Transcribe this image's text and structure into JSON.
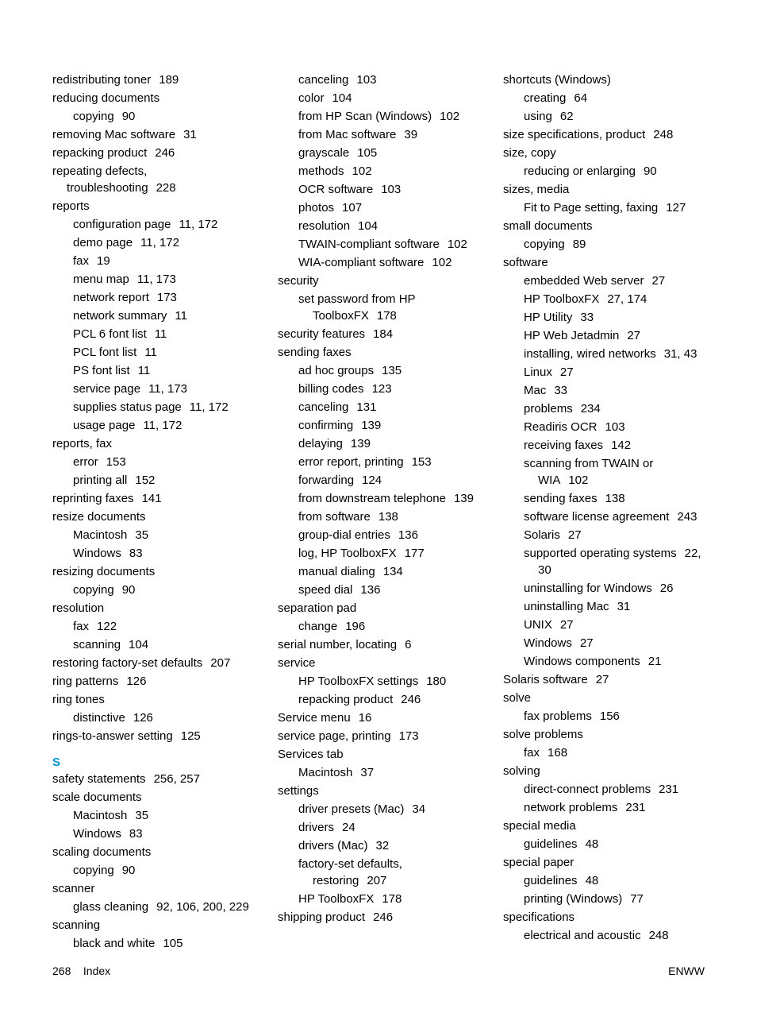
{
  "columns": [
    {
      "items": [
        {
          "type": "entry",
          "level": 0,
          "text": "redistributing toner",
          "pages": "189"
        },
        {
          "type": "entry",
          "level": 0,
          "text": "reducing documents",
          "pages": ""
        },
        {
          "type": "entry",
          "level": 1,
          "text": "copying",
          "pages": "90"
        },
        {
          "type": "entry",
          "level": 0,
          "text": "removing Mac software",
          "pages": "31"
        },
        {
          "type": "entry",
          "level": 0,
          "text": "repacking product",
          "pages": "246"
        },
        {
          "type": "entry",
          "level": 0,
          "text": "repeating defects, troubleshooting",
          "pages": "228"
        },
        {
          "type": "entry",
          "level": 0,
          "text": "reports",
          "pages": ""
        },
        {
          "type": "entry",
          "level": 1,
          "text": "configuration page",
          "pages": "11, 172"
        },
        {
          "type": "entry",
          "level": 1,
          "text": "demo page",
          "pages": "11, 172"
        },
        {
          "type": "entry",
          "level": 1,
          "text": "fax",
          "pages": "19"
        },
        {
          "type": "entry",
          "level": 1,
          "text": "menu map",
          "pages": "11, 173"
        },
        {
          "type": "entry",
          "level": 1,
          "text": "network report",
          "pages": "173"
        },
        {
          "type": "entry",
          "level": 1,
          "text": "network summary",
          "pages": "11"
        },
        {
          "type": "entry",
          "level": 1,
          "text": "PCL 6 font list",
          "pages": "11"
        },
        {
          "type": "entry",
          "level": 1,
          "text": "PCL font list",
          "pages": "11"
        },
        {
          "type": "entry",
          "level": 1,
          "text": "PS font list",
          "pages": "11"
        },
        {
          "type": "entry",
          "level": 1,
          "text": "service page",
          "pages": "11, 173"
        },
        {
          "type": "entry",
          "level": 1,
          "text": "supplies status page",
          "pages": "11, 172"
        },
        {
          "type": "entry",
          "level": 1,
          "text": "usage page",
          "pages": "11, 172"
        },
        {
          "type": "entry",
          "level": 0,
          "text": "reports, fax",
          "pages": ""
        },
        {
          "type": "entry",
          "level": 1,
          "text": "error",
          "pages": "153"
        },
        {
          "type": "entry",
          "level": 1,
          "text": "printing all",
          "pages": "152"
        },
        {
          "type": "entry",
          "level": 0,
          "text": "reprinting faxes",
          "pages": "141"
        },
        {
          "type": "entry",
          "level": 0,
          "text": "resize documents",
          "pages": ""
        },
        {
          "type": "entry",
          "level": 1,
          "text": "Macintosh",
          "pages": "35"
        },
        {
          "type": "entry",
          "level": 1,
          "text": "Windows",
          "pages": "83"
        },
        {
          "type": "entry",
          "level": 0,
          "text": "resizing documents",
          "pages": ""
        },
        {
          "type": "entry",
          "level": 1,
          "text": "copying",
          "pages": "90"
        },
        {
          "type": "entry",
          "level": 0,
          "text": "resolution",
          "pages": ""
        },
        {
          "type": "entry",
          "level": 1,
          "text": "fax",
          "pages": "122"
        },
        {
          "type": "entry",
          "level": 1,
          "text": "scanning",
          "pages": "104"
        },
        {
          "type": "entry",
          "level": 0,
          "text": "restoring factory-set defaults",
          "pages": "207"
        },
        {
          "type": "entry",
          "level": 0,
          "text": "ring patterns",
          "pages": "126"
        },
        {
          "type": "entry",
          "level": 0,
          "text": "ring tones",
          "pages": ""
        },
        {
          "type": "entry",
          "level": 1,
          "text": "distinctive",
          "pages": "126"
        },
        {
          "type": "entry",
          "level": 0,
          "text": "rings-to-answer setting",
          "pages": "125"
        },
        {
          "type": "section",
          "text": "S"
        },
        {
          "type": "entry",
          "level": 0,
          "text": "safety statements",
          "pages": "256, 257"
        },
        {
          "type": "entry",
          "level": 0,
          "text": "scale documents",
          "pages": ""
        },
        {
          "type": "entry",
          "level": 1,
          "text": "Macintosh",
          "pages": "35"
        },
        {
          "type": "entry",
          "level": 1,
          "text": "Windows",
          "pages": "83"
        },
        {
          "type": "entry",
          "level": 0,
          "text": "scaling documents",
          "pages": ""
        },
        {
          "type": "entry",
          "level": 1,
          "text": "copying",
          "pages": "90"
        },
        {
          "type": "entry",
          "level": 0,
          "text": "scanner",
          "pages": ""
        },
        {
          "type": "entry",
          "level": 1,
          "text": "glass cleaning",
          "pages": "92, 106, 200, 229"
        },
        {
          "type": "entry",
          "level": 0,
          "text": "scanning",
          "pages": ""
        },
        {
          "type": "entry",
          "level": 1,
          "text": "black and white",
          "pages": "105"
        }
      ]
    },
    {
      "items": [
        {
          "type": "entry",
          "level": 1,
          "text": "canceling",
          "pages": "103"
        },
        {
          "type": "entry",
          "level": 1,
          "text": "color",
          "pages": "104"
        },
        {
          "type": "entry",
          "level": 1,
          "text": "from HP Scan (Windows)",
          "pages": "102"
        },
        {
          "type": "entry",
          "level": 1,
          "text": "from Mac software",
          "pages": "39"
        },
        {
          "type": "entry",
          "level": 1,
          "text": "grayscale",
          "pages": "105"
        },
        {
          "type": "entry",
          "level": 1,
          "text": "methods",
          "pages": "102"
        },
        {
          "type": "entry",
          "level": 1,
          "text": "OCR software",
          "pages": "103"
        },
        {
          "type": "entry",
          "level": 1,
          "text": "photos",
          "pages": "107"
        },
        {
          "type": "entry",
          "level": 1,
          "text": "resolution",
          "pages": "104"
        },
        {
          "type": "entry",
          "level": 1,
          "text": "TWAIN-compliant software",
          "pages": "102"
        },
        {
          "type": "entry",
          "level": 1,
          "text": "WIA-compliant software",
          "pages": "102"
        },
        {
          "type": "entry",
          "level": 0,
          "text": "security",
          "pages": ""
        },
        {
          "type": "entry",
          "level": 1,
          "text": "set password from HP ToolboxFX",
          "pages": "178"
        },
        {
          "type": "entry",
          "level": 0,
          "text": "security features",
          "pages": "184"
        },
        {
          "type": "entry",
          "level": 0,
          "text": "sending faxes",
          "pages": ""
        },
        {
          "type": "entry",
          "level": 1,
          "text": "ad hoc groups",
          "pages": "135"
        },
        {
          "type": "entry",
          "level": 1,
          "text": "billing codes",
          "pages": "123"
        },
        {
          "type": "entry",
          "level": 1,
          "text": "canceling",
          "pages": "131"
        },
        {
          "type": "entry",
          "level": 1,
          "text": "confirming",
          "pages": "139"
        },
        {
          "type": "entry",
          "level": 1,
          "text": "delaying",
          "pages": "139"
        },
        {
          "type": "entry",
          "level": 1,
          "text": "error report, printing",
          "pages": "153"
        },
        {
          "type": "entry",
          "level": 1,
          "text": "forwarding",
          "pages": "124"
        },
        {
          "type": "entry",
          "level": 1,
          "text": "from downstream telephone",
          "pages": "139"
        },
        {
          "type": "entry",
          "level": 1,
          "text": "from software",
          "pages": "138"
        },
        {
          "type": "entry",
          "level": 1,
          "text": "group-dial entries",
          "pages": "136"
        },
        {
          "type": "entry",
          "level": 1,
          "text": "log, HP ToolboxFX",
          "pages": "177"
        },
        {
          "type": "entry",
          "level": 1,
          "text": "manual dialing",
          "pages": "134"
        },
        {
          "type": "entry",
          "level": 1,
          "text": "speed dial",
          "pages": "136"
        },
        {
          "type": "entry",
          "level": 0,
          "text": "separation pad",
          "pages": ""
        },
        {
          "type": "entry",
          "level": 1,
          "text": "change",
          "pages": "196"
        },
        {
          "type": "entry",
          "level": 0,
          "text": "serial number, locating",
          "pages": "6"
        },
        {
          "type": "entry",
          "level": 0,
          "text": "service",
          "pages": ""
        },
        {
          "type": "entry",
          "level": 1,
          "text": "HP ToolboxFX settings",
          "pages": "180"
        },
        {
          "type": "entry",
          "level": 1,
          "text": "repacking product",
          "pages": "246"
        },
        {
          "type": "entry",
          "level": 0,
          "text": "Service menu",
          "pages": "16"
        },
        {
          "type": "entry",
          "level": 0,
          "text": "service page, printing",
          "pages": "173"
        },
        {
          "type": "entry",
          "level": 0,
          "text": "Services tab",
          "pages": ""
        },
        {
          "type": "entry",
          "level": 1,
          "text": "Macintosh",
          "pages": "37"
        },
        {
          "type": "entry",
          "level": 0,
          "text": "settings",
          "pages": ""
        },
        {
          "type": "entry",
          "level": 1,
          "text": "driver presets (Mac)",
          "pages": "34"
        },
        {
          "type": "entry",
          "level": 1,
          "text": "drivers",
          "pages": "24"
        },
        {
          "type": "entry",
          "level": 1,
          "text": "drivers (Mac)",
          "pages": "32"
        },
        {
          "type": "entry",
          "level": 1,
          "text": "factory-set defaults, restoring",
          "pages": "207"
        },
        {
          "type": "entry",
          "level": 1,
          "text": "HP ToolboxFX",
          "pages": "178"
        },
        {
          "type": "entry",
          "level": 0,
          "text": "shipping product",
          "pages": "246"
        }
      ]
    },
    {
      "items": [
        {
          "type": "entry",
          "level": 0,
          "text": "shortcuts (Windows)",
          "pages": ""
        },
        {
          "type": "entry",
          "level": 1,
          "text": "creating",
          "pages": "64"
        },
        {
          "type": "entry",
          "level": 1,
          "text": "using",
          "pages": "62"
        },
        {
          "type": "entry",
          "level": 0,
          "text": "size specifications, product",
          "pages": "248"
        },
        {
          "type": "entry",
          "level": 0,
          "text": "size, copy",
          "pages": ""
        },
        {
          "type": "entry",
          "level": 1,
          "text": "reducing or enlarging",
          "pages": "90"
        },
        {
          "type": "entry",
          "level": 0,
          "text": "sizes, media",
          "pages": ""
        },
        {
          "type": "entry",
          "level": 1,
          "text": "Fit to Page setting, faxing",
          "pages": "127"
        },
        {
          "type": "entry",
          "level": 0,
          "text": "small documents",
          "pages": ""
        },
        {
          "type": "entry",
          "level": 1,
          "text": "copying",
          "pages": "89"
        },
        {
          "type": "entry",
          "level": 0,
          "text": "software",
          "pages": ""
        },
        {
          "type": "entry",
          "level": 1,
          "text": "embedded Web server",
          "pages": "27"
        },
        {
          "type": "entry",
          "level": 1,
          "text": "HP ToolboxFX",
          "pages": "27, 174"
        },
        {
          "type": "entry",
          "level": 1,
          "text": "HP Utility",
          "pages": "33"
        },
        {
          "type": "entry",
          "level": 1,
          "text": "HP Web Jetadmin",
          "pages": "27"
        },
        {
          "type": "entry",
          "level": 1,
          "text": "installing, wired networks",
          "pages": "31, 43"
        },
        {
          "type": "entry",
          "level": 1,
          "text": "Linux",
          "pages": "27"
        },
        {
          "type": "entry",
          "level": 1,
          "text": "Mac",
          "pages": "33"
        },
        {
          "type": "entry",
          "level": 1,
          "text": "problems",
          "pages": "234"
        },
        {
          "type": "entry",
          "level": 1,
          "text": "Readiris OCR",
          "pages": "103"
        },
        {
          "type": "entry",
          "level": 1,
          "text": "receiving faxes",
          "pages": "142"
        },
        {
          "type": "entry",
          "level": 1,
          "text": "scanning from TWAIN or WIA",
          "pages": "102"
        },
        {
          "type": "entry",
          "level": 1,
          "text": "sending faxes",
          "pages": "138"
        },
        {
          "type": "entry",
          "level": 1,
          "text": "software license agreement",
          "pages": "243"
        },
        {
          "type": "entry",
          "level": 1,
          "text": "Solaris",
          "pages": "27"
        },
        {
          "type": "entry",
          "level": 1,
          "text": "supported operating systems",
          "pages": "22, 30"
        },
        {
          "type": "entry",
          "level": 1,
          "text": "uninstalling for Windows",
          "pages": "26"
        },
        {
          "type": "entry",
          "level": 1,
          "text": "uninstalling Mac",
          "pages": "31"
        },
        {
          "type": "entry",
          "level": 1,
          "text": "UNIX",
          "pages": "27"
        },
        {
          "type": "entry",
          "level": 1,
          "text": "Windows",
          "pages": "27"
        },
        {
          "type": "entry",
          "level": 1,
          "text": "Windows components",
          "pages": "21"
        },
        {
          "type": "entry",
          "level": 0,
          "text": "Solaris software",
          "pages": "27"
        },
        {
          "type": "entry",
          "level": 0,
          "text": "solve",
          "pages": ""
        },
        {
          "type": "entry",
          "level": 1,
          "text": "fax problems",
          "pages": "156"
        },
        {
          "type": "entry",
          "level": 0,
          "text": "solve problems",
          "pages": ""
        },
        {
          "type": "entry",
          "level": 1,
          "text": "fax",
          "pages": "168"
        },
        {
          "type": "entry",
          "level": 0,
          "text": "solving",
          "pages": ""
        },
        {
          "type": "entry",
          "level": 1,
          "text": "direct-connect problems",
          "pages": "231"
        },
        {
          "type": "entry",
          "level": 1,
          "text": "network problems",
          "pages": "231"
        },
        {
          "type": "entry",
          "level": 0,
          "text": "special media",
          "pages": ""
        },
        {
          "type": "entry",
          "level": 1,
          "text": "guidelines",
          "pages": "48"
        },
        {
          "type": "entry",
          "level": 0,
          "text": "special paper",
          "pages": ""
        },
        {
          "type": "entry",
          "level": 1,
          "text": "guidelines",
          "pages": "48"
        },
        {
          "type": "entry",
          "level": 1,
          "text": "printing (Windows)",
          "pages": "77"
        },
        {
          "type": "entry",
          "level": 0,
          "text": "specifications",
          "pages": ""
        },
        {
          "type": "entry",
          "level": 1,
          "text": "electrical and acoustic",
          "pages": "248"
        }
      ]
    }
  ],
  "footer": {
    "left_page": "268",
    "left_label": "Index",
    "right": "ENWW"
  }
}
